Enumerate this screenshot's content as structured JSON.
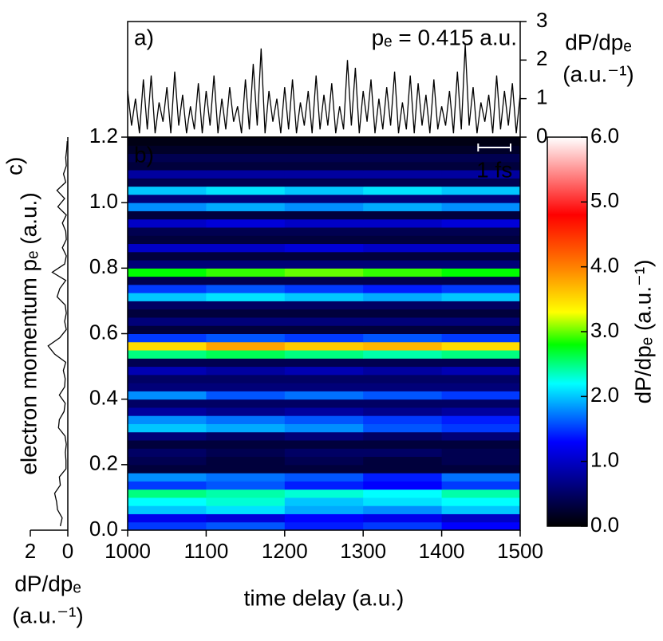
{
  "chart_data": [
    {
      "type": "line",
      "label": "a)",
      "annotation": "pₑ = 0.415 a.u.",
      "ylabel": [
        "dP/dpₑ",
        "(a.u.⁻¹)"
      ],
      "color": "#000000",
      "xlim": [
        1000,
        1500
      ],
      "ylim": [
        0,
        3
      ],
      "yticks": [
        0,
        1,
        2,
        3
      ],
      "x": [
        1000,
        1005,
        1010,
        1015,
        1020,
        1025,
        1030,
        1035,
        1040,
        1045,
        1050,
        1055,
        1060,
        1065,
        1070,
        1075,
        1080,
        1085,
        1090,
        1095,
        1100,
        1105,
        1110,
        1115,
        1120,
        1125,
        1130,
        1135,
        1140,
        1145,
        1150,
        1155,
        1160,
        1165,
        1170,
        1175,
        1180,
        1185,
        1190,
        1195,
        1200,
        1205,
        1210,
        1215,
        1220,
        1225,
        1230,
        1235,
        1240,
        1245,
        1250,
        1255,
        1260,
        1265,
        1270,
        1275,
        1280,
        1285,
        1290,
        1295,
        1300,
        1305,
        1310,
        1315,
        1320,
        1325,
        1330,
        1335,
        1340,
        1345,
        1350,
        1355,
        1360,
        1365,
        1370,
        1375,
        1380,
        1385,
        1390,
        1395,
        1400,
        1405,
        1410,
        1415,
        1420,
        1425,
        1430,
        1435,
        1440,
        1445,
        1450,
        1455,
        1460,
        1465,
        1470,
        1475,
        1480,
        1485,
        1490,
        1495,
        1500
      ],
      "values": [
        1.2,
        0.3,
        1.0,
        0.1,
        1.5,
        0.2,
        1.6,
        0.1,
        0.9,
        0.4,
        1.3,
        0.1,
        1.7,
        0.3,
        1.1,
        0.1,
        0.8,
        0.2,
        1.4,
        0.1,
        1.2,
        0.3,
        1.6,
        0.1,
        1.0,
        0.2,
        1.3,
        0.4,
        0.8,
        0.1,
        1.5,
        0.2,
        1.9,
        0.3,
        2.3,
        0.1,
        1.2,
        0.4,
        1.0,
        0.1,
        1.3,
        0.2,
        1.5,
        0.1,
        0.9,
        0.3,
        1.2,
        0.1,
        1.6,
        0.2,
        1.1,
        0.3,
        1.4,
        0.1,
        0.8,
        0.2,
        2.0,
        0.3,
        1.8,
        0.1,
        1.2,
        0.4,
        1.5,
        0.1,
        1.0,
        0.2,
        1.3,
        0.3,
        1.7,
        0.1,
        0.9,
        0.2,
        1.6,
        0.1,
        1.4,
        0.3,
        1.1,
        0.1,
        1.5,
        0.2,
        0.8,
        0.3,
        1.2,
        0.1,
        1.7,
        0.2,
        2.4,
        0.3,
        1.3,
        0.1,
        0.9,
        0.4,
        1.1,
        0.1,
        1.6,
        0.2,
        1.2,
        0.3,
        1.4,
        0.1,
        1.1
      ]
    },
    {
      "type": "heatmap",
      "label": "b)",
      "xlabel": "time delay (a.u.)",
      "ylabel": "electron momentum pₑ (a.u.)",
      "xlim": [
        1000,
        1500
      ],
      "xticks": [
        1000,
        1100,
        1200,
        1300,
        1400,
        1500
      ],
      "ylim": [
        0,
        1.2
      ],
      "yticks": [
        {
          "value": 0,
          "label": "0.0"
        },
        {
          "value": 0.2,
          "label": "0.2"
        },
        {
          "value": 0.4,
          "label": "0.4"
        },
        {
          "value": 0.6,
          "label": "0.6"
        },
        {
          "value": 0.8,
          "label": "0.8"
        },
        {
          "value": 1.0,
          "label": "1.0"
        },
        {
          "value": 1.2,
          "label": "1.2"
        }
      ],
      "scalebar": {
        "label": "1 fs",
        "length": 41.34
      },
      "x": [
        1050,
        1150,
        1250,
        1350,
        1450
      ],
      "y": [
        0.0125,
        0.0375,
        0.0625,
        0.0875,
        0.1125,
        0.1375,
        0.1625,
        0.1875,
        0.2125,
        0.2375,
        0.2625,
        0.2875,
        0.3125,
        0.3375,
        0.3625,
        0.3875,
        0.4125,
        0.4375,
        0.4625,
        0.4875,
        0.5125,
        0.5375,
        0.5625,
        0.5875,
        0.6125,
        0.6375,
        0.6625,
        0.6875,
        0.7125,
        0.7375,
        0.7625,
        0.7875,
        0.8125,
        0.8375,
        0.8625,
        0.8875,
        0.9125,
        0.9375,
        0.9625,
        0.9875,
        1.0125,
        1.0375,
        1.0625,
        1.0875,
        1.1125,
        1.1375,
        1.1625,
        1.1875
      ],
      "z": [
        [
          1.5,
          1.6,
          1.4,
          1.5,
          1.3
        ],
        [
          1.2,
          1.1,
          1.3,
          1.2,
          1.0
        ],
        [
          2.0,
          2.1,
          1.9,
          1.8,
          2.0
        ],
        [
          2.2,
          2.3,
          2.0,
          2.1,
          2.2
        ],
        [
          2.5,
          2.4,
          2.3,
          2.2,
          2.4
        ],
        [
          1.5,
          1.6,
          1.4,
          1.3,
          1.5
        ],
        [
          1.8,
          1.7,
          1.6,
          1.4,
          1.7
        ],
        [
          0.3,
          0.3,
          0.3,
          0.3,
          0.3
        ],
        [
          0.4,
          0.3,
          0.4,
          0.3,
          0.4
        ],
        [
          0.5,
          0.4,
          0.5,
          0.5,
          0.4
        ],
        [
          0.3,
          0.3,
          0.3,
          0.3,
          0.3
        ],
        [
          0.6,
          0.5,
          0.6,
          0.5,
          0.6
        ],
        [
          2.0,
          1.9,
          1.8,
          1.6,
          1.5
        ],
        [
          1.8,
          1.7,
          1.6,
          1.5,
          1.4
        ],
        [
          0.8,
          0.7,
          0.8,
          0.7,
          0.8
        ],
        [
          0.5,
          0.5,
          0.5,
          0.5,
          0.5
        ],
        [
          1.8,
          1.6,
          1.7,
          1.6,
          1.5
        ],
        [
          0.6,
          0.6,
          0.6,
          0.6,
          0.6
        ],
        [
          0.5,
          0.5,
          0.5,
          0.5,
          0.5
        ],
        [
          0.9,
          0.8,
          0.9,
          0.8,
          0.9
        ],
        [
          0.4,
          0.4,
          0.4,
          0.4,
          0.4
        ],
        [
          2.5,
          2.6,
          2.5,
          2.4,
          2.5
        ],
        [
          3.5,
          3.8,
          3.6,
          3.7,
          3.5
        ],
        [
          1.5,
          1.6,
          1.5,
          1.6,
          1.5
        ],
        [
          0.3,
          0.3,
          0.3,
          0.3,
          0.3
        ],
        [
          0.6,
          0.6,
          0.6,
          0.6,
          0.6
        ],
        [
          0.3,
          0.3,
          0.3,
          0.3,
          0.3
        ],
        [
          0.5,
          0.5,
          0.5,
          0.5,
          0.5
        ],
        [
          2.0,
          2.1,
          2.0,
          1.9,
          2.0
        ],
        [
          1.5,
          1.6,
          1.5,
          1.4,
          1.5
        ],
        [
          0.4,
          0.4,
          0.4,
          0.4,
          0.4
        ],
        [
          2.8,
          2.9,
          3.0,
          2.9,
          2.8
        ],
        [
          0.6,
          0.6,
          0.6,
          0.6,
          0.6
        ],
        [
          0.3,
          0.3,
          0.3,
          0.3,
          0.3
        ],
        [
          1.0,
          1.0,
          1.1,
          1.0,
          1.0
        ],
        [
          0.3,
          0.3,
          0.3,
          0.3,
          0.3
        ],
        [
          0.4,
          0.4,
          0.4,
          0.4,
          0.4
        ],
        [
          1.0,
          1.1,
          1.0,
          1.0,
          1.1
        ],
        [
          0.3,
          0.3,
          0.3,
          0.3,
          0.3
        ],
        [
          1.8,
          1.9,
          1.8,
          1.9,
          1.8
        ],
        [
          0.6,
          0.6,
          0.6,
          0.6,
          0.6
        ],
        [
          2.0,
          2.1,
          2.0,
          2.1,
          2.0
        ],
        [
          0.4,
          0.4,
          0.4,
          0.4,
          0.4
        ],
        [
          0.8,
          0.8,
          0.8,
          0.8,
          0.8
        ],
        [
          0.3,
          0.3,
          0.3,
          0.3,
          0.3
        ],
        [
          0.4,
          0.4,
          0.4,
          0.4,
          0.4
        ],
        [
          0.2,
          0.2,
          0.2,
          0.2,
          0.2
        ],
        [
          0.1,
          0.1,
          0.1,
          0.1,
          0.1
        ]
      ],
      "colorbar": {
        "label": "dP/dpₑ (a.u.⁻¹)",
        "zlim": [
          0,
          6
        ],
        "ticks": [
          {
            "value": 0,
            "label": "0.0"
          },
          {
            "value": 1,
            "label": "1.0"
          },
          {
            "value": 2,
            "label": "2.0"
          },
          {
            "value": 3,
            "label": "3.0"
          },
          {
            "value": 4,
            "label": "4.0"
          },
          {
            "value": 5,
            "label": "5.0"
          },
          {
            "value": 6,
            "label": "6.0"
          }
        ],
        "colorscale": [
          [
            0,
            "#000000"
          ],
          [
            0.7,
            "#00008c"
          ],
          [
            1.3,
            "#0000ff"
          ],
          [
            2.2,
            "#00ffff"
          ],
          [
            2.8,
            "#00ff00"
          ],
          [
            3.3,
            "#ffff00"
          ],
          [
            4.0,
            "#ff8000"
          ],
          [
            4.8,
            "#ff0000"
          ],
          [
            6.0,
            "#ffffff"
          ]
        ]
      }
    },
    {
      "type": "line",
      "label": "c)",
      "xlabel": [
        "dP/dpₑ",
        "(a.u.⁻¹)"
      ],
      "color": "#000000",
      "swap_axes": true,
      "xlim": [
        2,
        0
      ],
      "xticks": [
        2,
        0
      ],
      "ylim": [
        0,
        1.2
      ],
      "y": [
        0.0125,
        0.0375,
        0.0625,
        0.0875,
        0.1125,
        0.1375,
        0.1625,
        0.1875,
        0.2125,
        0.2375,
        0.2625,
        0.2875,
        0.3125,
        0.3375,
        0.3625,
        0.3875,
        0.4125,
        0.4375,
        0.4625,
        0.4875,
        0.5125,
        0.5375,
        0.5625,
        0.5875,
        0.6125,
        0.6375,
        0.6625,
        0.6875,
        0.7125,
        0.7375,
        0.7625,
        0.7875,
        0.8125,
        0.8375,
        0.8625,
        0.8875,
        0.9125,
        0.9375,
        0.9625,
        0.9875,
        1.0125,
        1.0375,
        1.0625,
        1.0875,
        1.1125,
        1.1375,
        1.1625,
        1.1875
      ],
      "values": [
        0.4,
        0.3,
        0.55,
        0.6,
        0.7,
        0.4,
        0.45,
        0.1,
        0.1,
        0.13,
        0.08,
        0.15,
        0.5,
        0.45,
        0.2,
        0.14,
        0.45,
        0.17,
        0.14,
        0.24,
        0.11,
        0.7,
        1.05,
        0.43,
        0.08,
        0.17,
        0.08,
        0.14,
        0.57,
        0.43,
        0.11,
        0.83,
        0.17,
        0.08,
        0.29,
        0.08,
        0.11,
        0.29,
        0.08,
        0.53,
        0.17,
        0.58,
        0.11,
        0.23,
        0.08,
        0.11,
        0.06,
        0.03
      ]
    }
  ]
}
